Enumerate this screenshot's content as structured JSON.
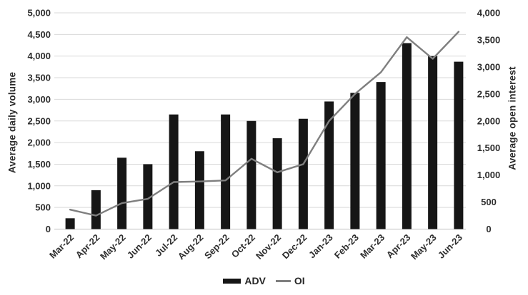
{
  "chart_data": {
    "type": "combo",
    "categories": [
      "Mar-22",
      "Apr-22",
      "May-22",
      "Jun-22",
      "Jul-22",
      "Aug-22",
      "Sep-22",
      "Oct-22",
      "Nov-22",
      "Dec-22",
      "Jan-23",
      "Feb-23",
      "Mar-23",
      "Apr-23",
      "May-23",
      "Jun-23"
    ],
    "series": [
      {
        "name": "ADV",
        "type": "bar",
        "axis": "left",
        "values": [
          250,
          900,
          1650,
          1500,
          2650,
          1800,
          2650,
          2500,
          2100,
          2550,
          2950,
          3150,
          3400,
          4300,
          4000,
          3870
        ]
      },
      {
        "name": "OI",
        "type": "line",
        "axis": "right",
        "values": [
          360,
          250,
          480,
          560,
          870,
          880,
          900,
          1300,
          1050,
          1200,
          2000,
          2500,
          2900,
          3550,
          3150,
          3650
        ]
      }
    ],
    "left_axis": {
      "title": "Average daily volume",
      "min": 0,
      "max": 5000,
      "step": 500,
      "tick_labels": [
        "0",
        "500",
        "1,000",
        "1,500",
        "2,000",
        "2,500",
        "3,000",
        "3,500",
        "4,000",
        "4,500",
        "5,000"
      ]
    },
    "right_axis": {
      "title": "Average open interest",
      "min": 0,
      "max": 4000,
      "step": 500,
      "tick_labels": [
        "0",
        "500",
        "1,000",
        "1,500",
        "2,000",
        "2,500",
        "3,000",
        "3,500",
        "4,000"
      ]
    },
    "legend": [
      {
        "label": "ADV",
        "swatch": "bar"
      },
      {
        "label": "OI",
        "swatch": "line"
      }
    ],
    "grid": "horizontal",
    "legend_position": "bottom-center",
    "colors": {
      "bar": "#161616",
      "line": "#7f7f7f",
      "gridline": "#d9d9d9",
      "axis_line": "#bfbfbf",
      "text": "#2e2e2e"
    }
  }
}
